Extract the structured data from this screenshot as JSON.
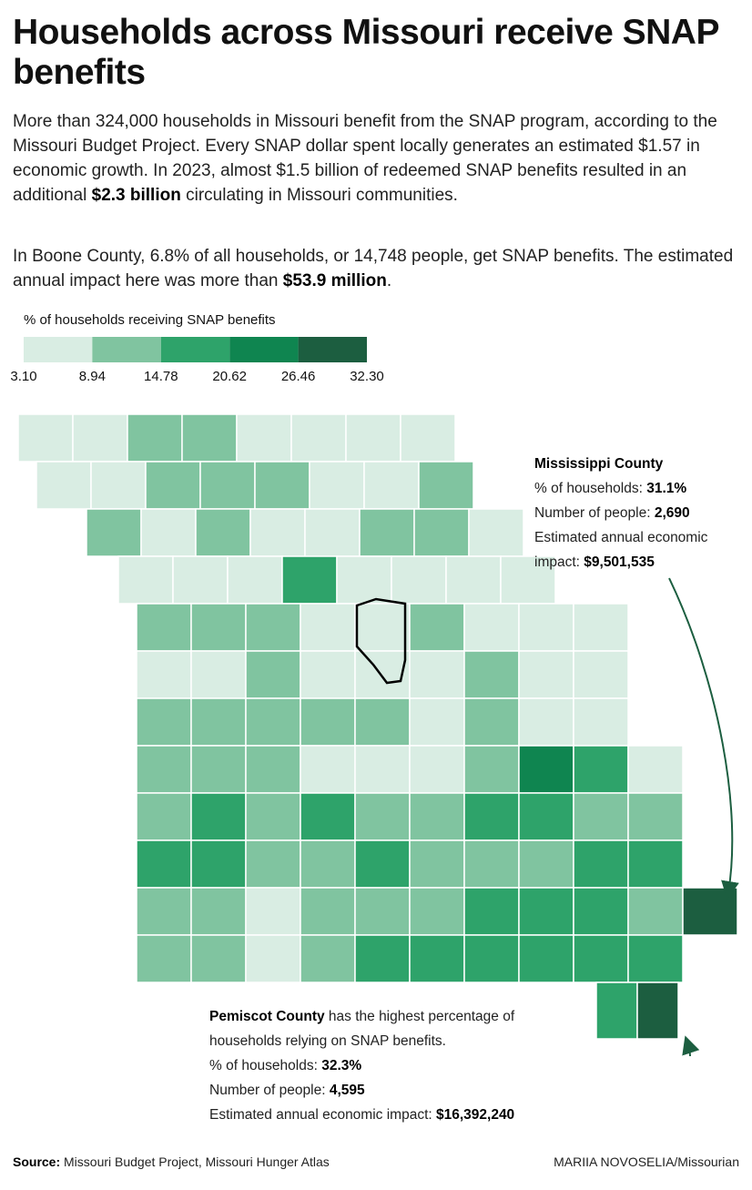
{
  "header": {
    "title": "Households across Missouri receive SNAP benefits"
  },
  "intro": [
    {
      "text": "More than 324,000 households in Missouri benefit from the SNAP program, according to the Missouri Budget Project. Every SNAP dollar spent locally generates an estimated $1.57 in economic growth. In 2023, almost $1.5 billion of redeemed SNAP benefits resulted in an additional ",
      "bold": "$2.3 billion",
      "after": " circulating in Missouri communities."
    },
    {
      "text": "In Boone County, 6.8% of all households, or 14,748 people, get SNAP benefits. The estimated annual impact here was more than ",
      "bold": "$53.9 million",
      "after": "."
    }
  ],
  "legend": {
    "title": "% of households receiving SNAP benefits",
    "breaks": [
      {
        "value": 3.1,
        "label": "3.10"
      },
      8.94,
      14.78,
      20.62,
      26.46,
      {
        "value": 32.3,
        "label": "32.30"
      }
    ],
    "colors": [
      "#d9ede3",
      "#80c4a0",
      "#2ea36a",
      "#0f8550",
      "#1c5e40"
    ]
  },
  "annotations": {
    "mississippi": {
      "title": "Mississippi County",
      "pct_label": "% of households: ",
      "pct": "31.1%",
      "people_label": "Number of people: ",
      "people": "2,690",
      "impact_label": "Estimated annual economic impact: ",
      "impact": "$9,501,535"
    },
    "pemiscot": {
      "title": "Pemiscot County",
      "note": " has the highest percentage of households relying on SNAP benefits.",
      "pct_label": "% of households: ",
      "pct": "32.3%",
      "people_label": "Number of people: ",
      "people": "4,595",
      "impact_label": "Estimated annual economic impact: ",
      "impact": "$16,392,240"
    }
  },
  "footer": {
    "source_label": "Source:",
    "source": " Missouri Budget Project, Missouri Hunger Atlas",
    "author": "MARIIA NOVOSELIA",
    "outlet": "/Missourian"
  }
}
